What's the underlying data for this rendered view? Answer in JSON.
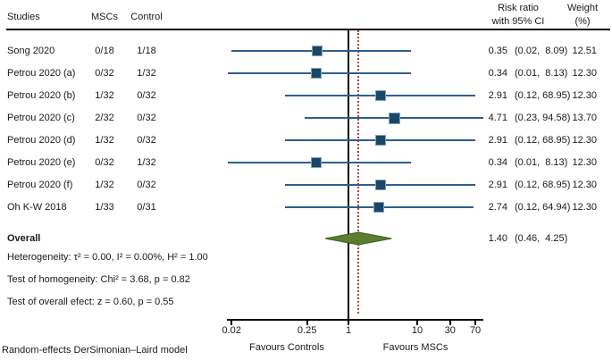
{
  "header": {
    "studies": "Studies",
    "mscs": "MSCs",
    "control": "Control",
    "risk_ratio_line1": "Risk ratio",
    "risk_ratio_line2": "with 95% CI",
    "weight_line1": "Weight",
    "weight_line2": "(%)"
  },
  "chart_data": {
    "type": "forest",
    "x_scale": "log",
    "x_axis": {
      "ticks": [
        0.02,
        0.25,
        1,
        10,
        30,
        70
      ],
      "tick_labels": [
        "0.02",
        "0.25",
        "1",
        "10",
        "30",
        "70"
      ],
      "range": [
        0.017,
        88
      ],
      "null_line": 1,
      "overall_estimate_line": 1.4,
      "label_left": "Favours Controls",
      "label_right": "Favours MSCs"
    },
    "rows": [
      {
        "study": "Song 2020",
        "mscs": "0/18",
        "control": "1/18",
        "rr": 0.35,
        "ci_low": 0.02,
        "ci_high": 8.09,
        "rr_text": "0.35",
        "ci_text": "(0.02,  8.09)",
        "weight": 12.51,
        "weight_text": "12.51"
      },
      {
        "study": "Petrou 2020 (a)",
        "mscs": "0/32",
        "control": "1/32",
        "rr": 0.34,
        "ci_low": 0.01,
        "ci_high": 8.13,
        "rr_text": "0.34",
        "ci_text": "(0.01,  8.13)",
        "weight": 12.3,
        "weight_text": "12.30"
      },
      {
        "study": "Petrou 2020 (b)",
        "mscs": "1/32",
        "control": "0/32",
        "rr": 2.91,
        "ci_low": 0.12,
        "ci_high": 68.95,
        "rr_text": "2.91",
        "ci_text": "(0.12, 68.95)",
        "weight": 12.3,
        "weight_text": "12.30"
      },
      {
        "study": "Petrou 2020 (c)",
        "mscs": "2/32",
        "control": "0/32",
        "rr": 4.71,
        "ci_low": 0.23,
        "ci_high": 94.58,
        "rr_text": "4.71",
        "ci_text": "(0.23, 94.58)",
        "weight": 13.7,
        "weight_text": "13.70"
      },
      {
        "study": "Petrou 2020 (d)",
        "mscs": "1/32",
        "control": "0/32",
        "rr": 2.91,
        "ci_low": 0.12,
        "ci_high": 68.95,
        "rr_text": "2.91",
        "ci_text": "(0.12, 68.95)",
        "weight": 12.3,
        "weight_text": "12.30"
      },
      {
        "study": "Petrou 2020 (e)",
        "mscs": "0/32",
        "control": "1/32",
        "rr": 0.34,
        "ci_low": 0.01,
        "ci_high": 8.13,
        "rr_text": "0.34",
        "ci_text": "(0.01,  8.13)",
        "weight": 12.3,
        "weight_text": "12.30"
      },
      {
        "study": "Petrou 2020 (f)",
        "mscs": "1/32",
        "control": "0/32",
        "rr": 2.91,
        "ci_low": 0.12,
        "ci_high": 68.95,
        "rr_text": "2.91",
        "ci_text": "(0.12, 68.95)",
        "weight": 12.3,
        "weight_text": "12.30"
      },
      {
        "study": "Oh K-W 2018",
        "mscs": "1/33",
        "control": "0/31",
        "rr": 2.74,
        "ci_low": 0.12,
        "ci_high": 64.94,
        "rr_text": "2.74",
        "ci_text": "(0.12, 64.94)",
        "weight": 12.3,
        "weight_text": "12.30"
      }
    ],
    "overall": {
      "label": "Overall",
      "rr": 1.4,
      "ci_low": 0.46,
      "ci_high": 4.25,
      "rr_text": "1.40",
      "ci_text": "(0.46,  4.25)"
    }
  },
  "stats": {
    "heterogeneity": "Heterogeneity: τ² = 0.00, I² = 0.00%, H² = 1.00",
    "homogeneity": "Test of homogeneity: Chi² = 3.68, p = 0.82",
    "overall_effect": "Test of overall efect: z = 0.60, p = 0.55"
  },
  "footer": "Random-effects DerSimonian–Laird model",
  "colors": {
    "ci_line": "#2d5f8e",
    "marker_fill": "#1c4668",
    "marker_border": "#7fa3c0",
    "diamond_fill": "#5b7e2e",
    "diamond_border": "#3f5c1d",
    "null_line": "#000000",
    "overall_line": "#b04438"
  }
}
